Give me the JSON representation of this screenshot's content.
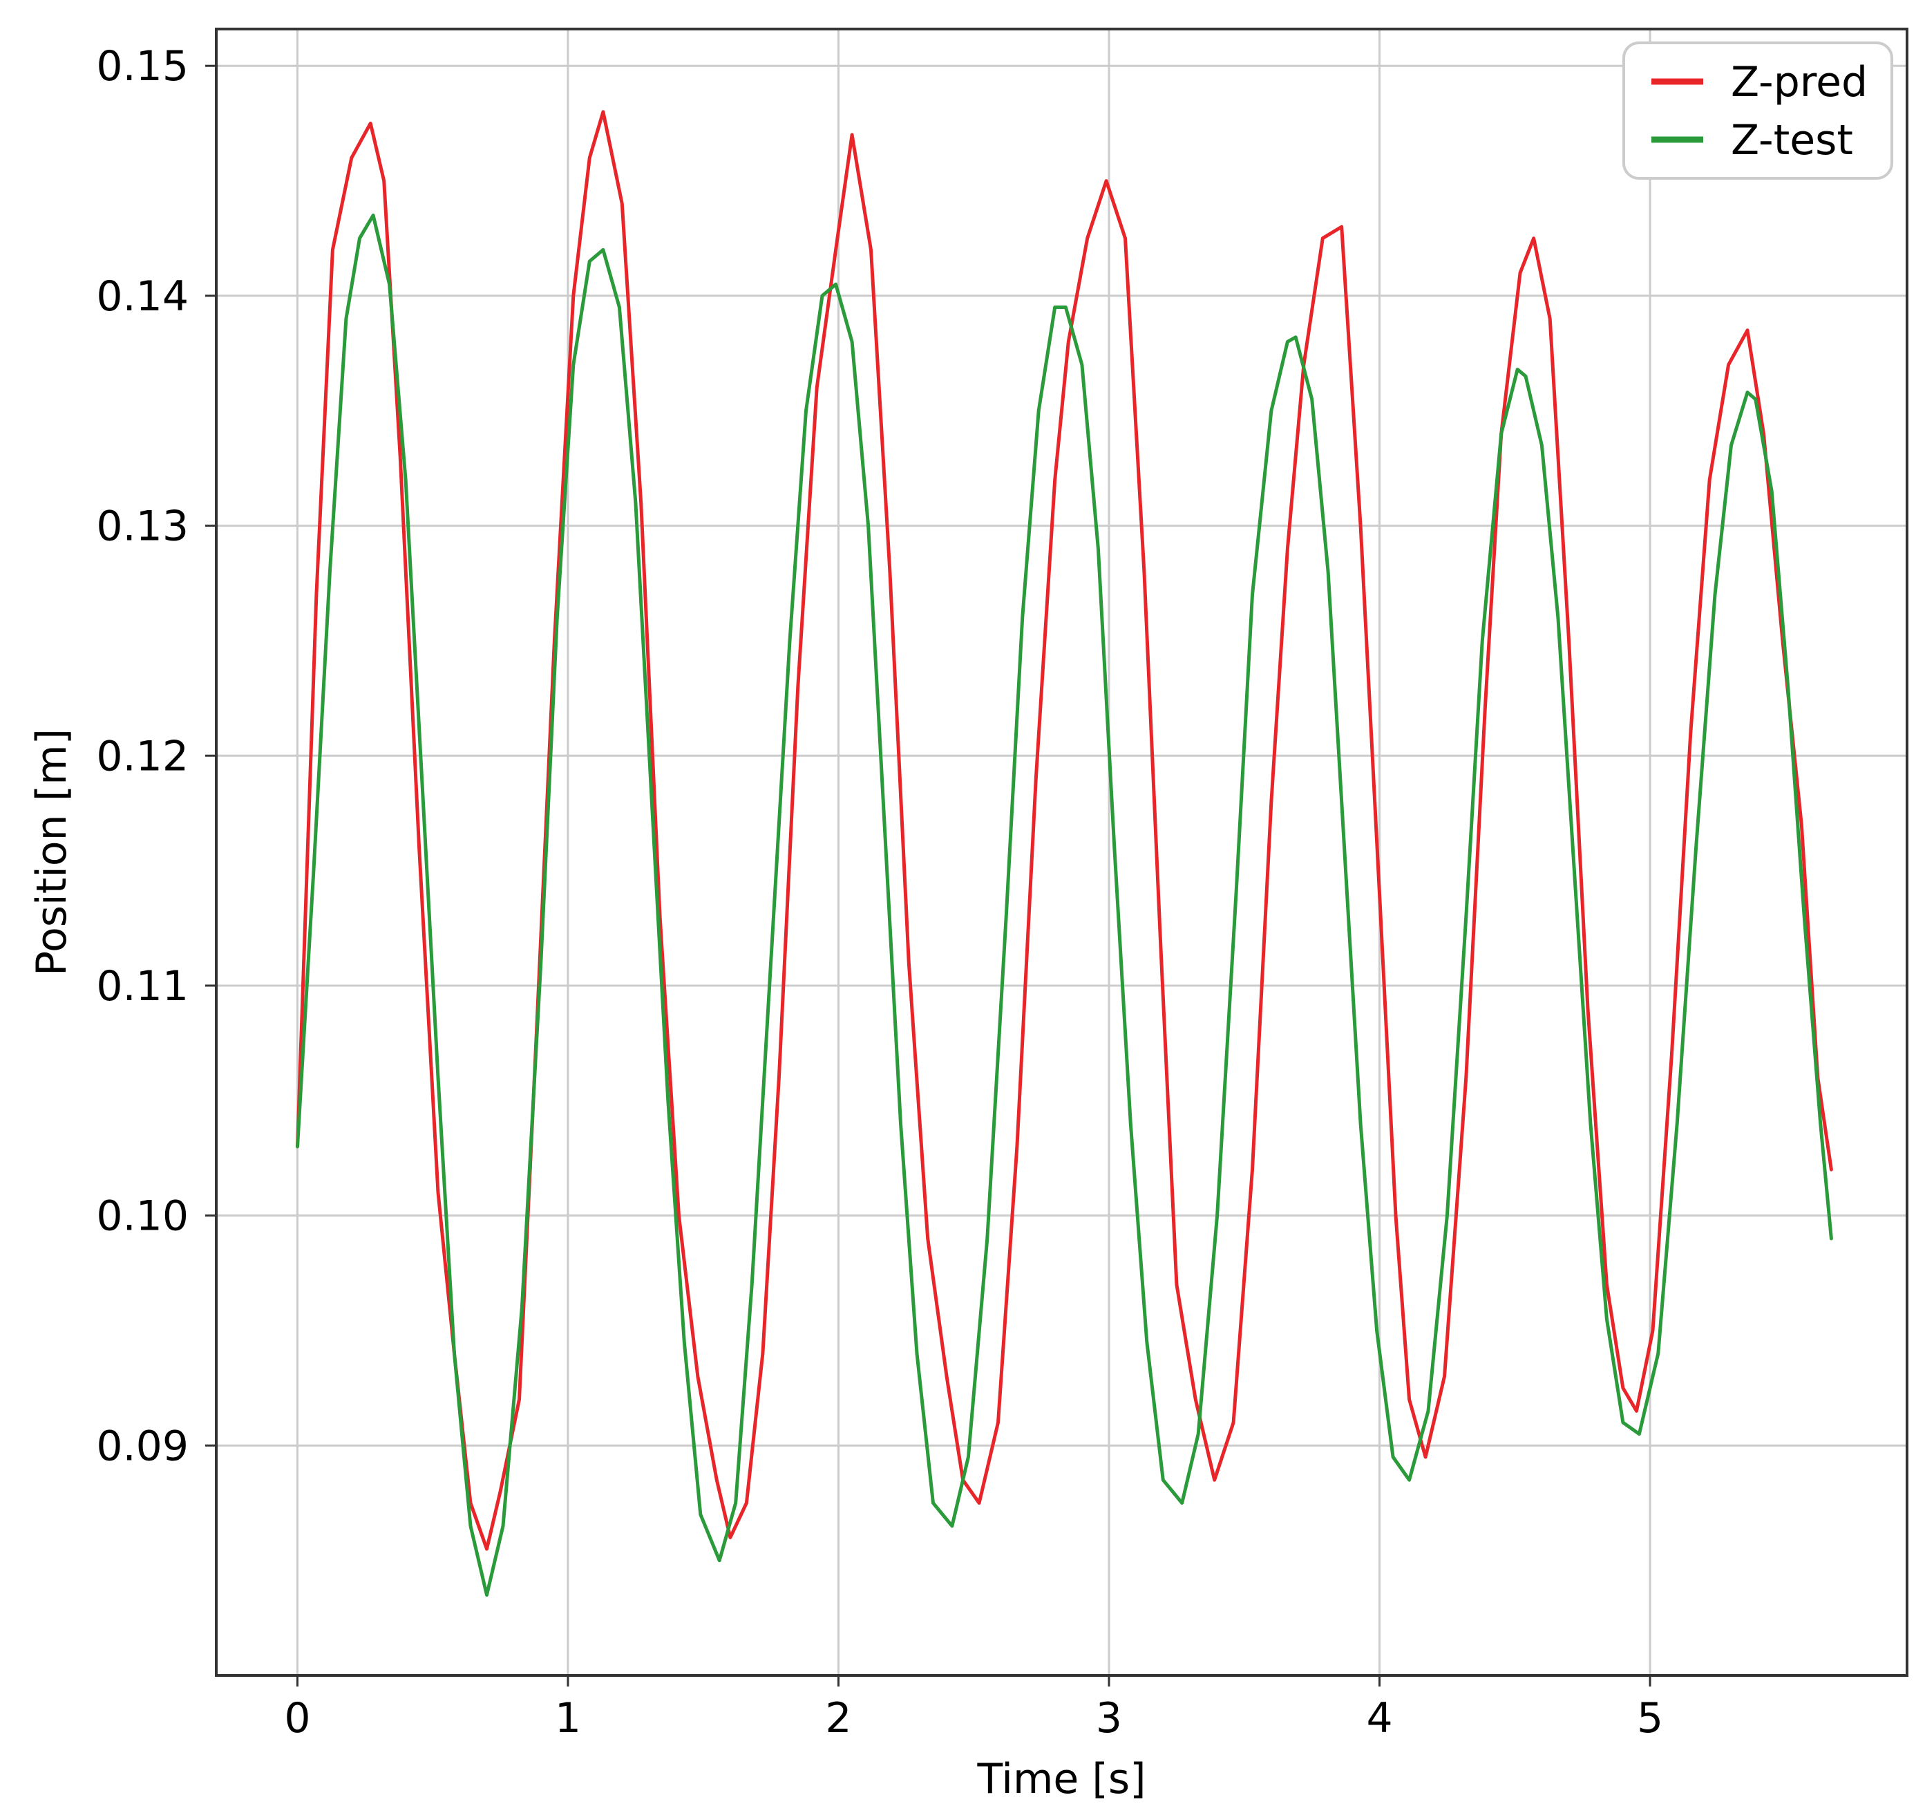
{
  "chart_data": {
    "type": "line",
    "title": "",
    "xlabel": "Time [s]",
    "ylabel": "Position [m]",
    "xlim": [
      -0.3,
      5.95
    ],
    "ylim": [
      0.08,
      0.1516
    ],
    "xticks": [
      0,
      1,
      2,
      3,
      4,
      5
    ],
    "xtick_labels": [
      "0",
      "1",
      "2",
      "3",
      "4",
      "5"
    ],
    "yticks": [
      0.09,
      0.1,
      0.11,
      0.12,
      0.13,
      0.14,
      0.15
    ],
    "ytick_labels": [
      "0.09",
      "0.10",
      "0.11",
      "0.12",
      "0.13",
      "0.14",
      "0.15"
    ],
    "grid": true,
    "legend_position": "top-right",
    "series": [
      {
        "name": "Z-pred",
        "color": "#e8262a",
        "x": [
          0.0,
          0.07,
          0.13,
          0.2,
          0.27,
          0.32,
          0.38,
          0.45,
          0.52,
          0.58,
          0.64,
          0.7,
          0.75,
          0.82,
          0.88,
          0.95,
          1.02,
          1.08,
          1.13,
          1.2,
          1.27,
          1.34,
          1.41,
          1.48,
          1.55,
          1.6,
          1.66,
          1.72,
          1.78,
          1.85,
          1.92,
          1.99,
          2.05,
          2.12,
          2.19,
          2.26,
          2.33,
          2.4,
          2.46,
          2.52,
          2.59,
          2.66,
          2.73,
          2.8,
          2.85,
          2.92,
          2.99,
          3.06,
          3.13,
          3.19,
          3.25,
          3.32,
          3.39,
          3.46,
          3.53,
          3.6,
          3.66,
          3.72,
          3.79,
          3.86,
          3.93,
          4.0,
          4.06,
          4.11,
          4.17,
          4.24,
          4.32,
          4.39,
          4.45,
          4.52,
          4.57,
          4.63,
          4.7,
          4.77,
          4.84,
          4.9,
          4.95,
          5.01,
          5.08,
          5.15,
          5.22,
          5.29,
          5.36,
          5.42,
          5.49,
          5.56,
          5.62,
          5.67
        ],
        "values": [
          0.103,
          0.127,
          0.142,
          0.146,
          0.1475,
          0.145,
          0.133,
          0.116,
          0.101,
          0.094,
          0.0875,
          0.0855,
          0.088,
          0.092,
          0.107,
          0.125,
          0.14,
          0.146,
          0.148,
          0.144,
          0.131,
          0.113,
          0.1,
          0.093,
          0.0885,
          0.086,
          0.0875,
          0.094,
          0.106,
          0.123,
          0.136,
          0.142,
          0.147,
          0.142,
          0.128,
          0.111,
          0.099,
          0.093,
          0.0885,
          0.0875,
          0.091,
          0.103,
          0.119,
          0.132,
          0.138,
          0.1425,
          0.145,
          0.1425,
          0.128,
          0.112,
          0.097,
          0.092,
          0.0885,
          0.091,
          0.102,
          0.118,
          0.129,
          0.137,
          0.1425,
          0.143,
          0.13,
          0.114,
          0.1,
          0.092,
          0.0895,
          0.093,
          0.106,
          0.122,
          0.134,
          0.141,
          0.1425,
          0.139,
          0.125,
          0.109,
          0.097,
          0.0925,
          0.0915,
          0.095,
          0.107,
          0.121,
          0.132,
          0.137,
          0.1385,
          0.134,
          0.125,
          0.117,
          0.106,
          0.102
        ]
      },
      {
        "name": "Z-test",
        "color": "#2a9a3a",
        "x": [
          0.0,
          0.06,
          0.12,
          0.18,
          0.23,
          0.28,
          0.34,
          0.4,
          0.46,
          0.52,
          0.58,
          0.64,
          0.7,
          0.76,
          0.83,
          0.9,
          0.96,
          1.02,
          1.08,
          1.13,
          1.19,
          1.25,
          1.31,
          1.37,
          1.43,
          1.49,
          1.56,
          1.62,
          1.68,
          1.75,
          1.82,
          1.88,
          1.94,
          1.99,
          2.05,
          2.11,
          2.17,
          2.23,
          2.29,
          2.35,
          2.42,
          2.48,
          2.55,
          2.62,
          2.68,
          2.74,
          2.8,
          2.84,
          2.9,
          2.96,
          3.02,
          3.08,
          3.14,
          3.2,
          3.27,
          3.33,
          3.4,
          3.47,
          3.53,
          3.6,
          3.66,
          3.69,
          3.75,
          3.81,
          3.87,
          3.93,
          3.99,
          4.05,
          4.11,
          4.18,
          4.25,
          4.32,
          4.38,
          4.45,
          4.51,
          4.54,
          4.6,
          4.66,
          4.72,
          4.78,
          4.84,
          4.9,
          4.96,
          5.03,
          5.1,
          5.17,
          5.24,
          5.3,
          5.36,
          5.39,
          5.45,
          5.51,
          5.57,
          5.63,
          5.67
        ],
        "values": [
          0.103,
          0.115,
          0.128,
          0.139,
          0.1425,
          0.1435,
          0.1405,
          0.132,
          0.119,
          0.106,
          0.094,
          0.0865,
          0.0835,
          0.0865,
          0.096,
          0.111,
          0.126,
          0.137,
          0.1415,
          0.142,
          0.1395,
          0.131,
          0.118,
          0.105,
          0.0945,
          0.087,
          0.085,
          0.0875,
          0.097,
          0.111,
          0.125,
          0.135,
          0.14,
          0.1405,
          0.138,
          0.13,
          0.117,
          0.104,
          0.094,
          0.0875,
          0.0865,
          0.0895,
          0.099,
          0.113,
          0.126,
          0.135,
          0.1395,
          0.1395,
          0.137,
          0.129,
          0.116,
          0.104,
          0.0945,
          0.0885,
          0.0875,
          0.0905,
          0.1,
          0.114,
          0.127,
          0.135,
          0.138,
          0.1382,
          0.1355,
          0.128,
          0.116,
          0.104,
          0.095,
          0.0895,
          0.0885,
          0.0915,
          0.1,
          0.113,
          0.125,
          0.134,
          0.1368,
          0.1365,
          0.1335,
          0.126,
          0.115,
          0.104,
          0.0955,
          0.091,
          0.0905,
          0.094,
          0.104,
          0.116,
          0.127,
          0.1335,
          0.1358,
          0.1355,
          0.1315,
          0.123,
          0.113,
          0.104,
          0.099
        ]
      }
    ]
  }
}
